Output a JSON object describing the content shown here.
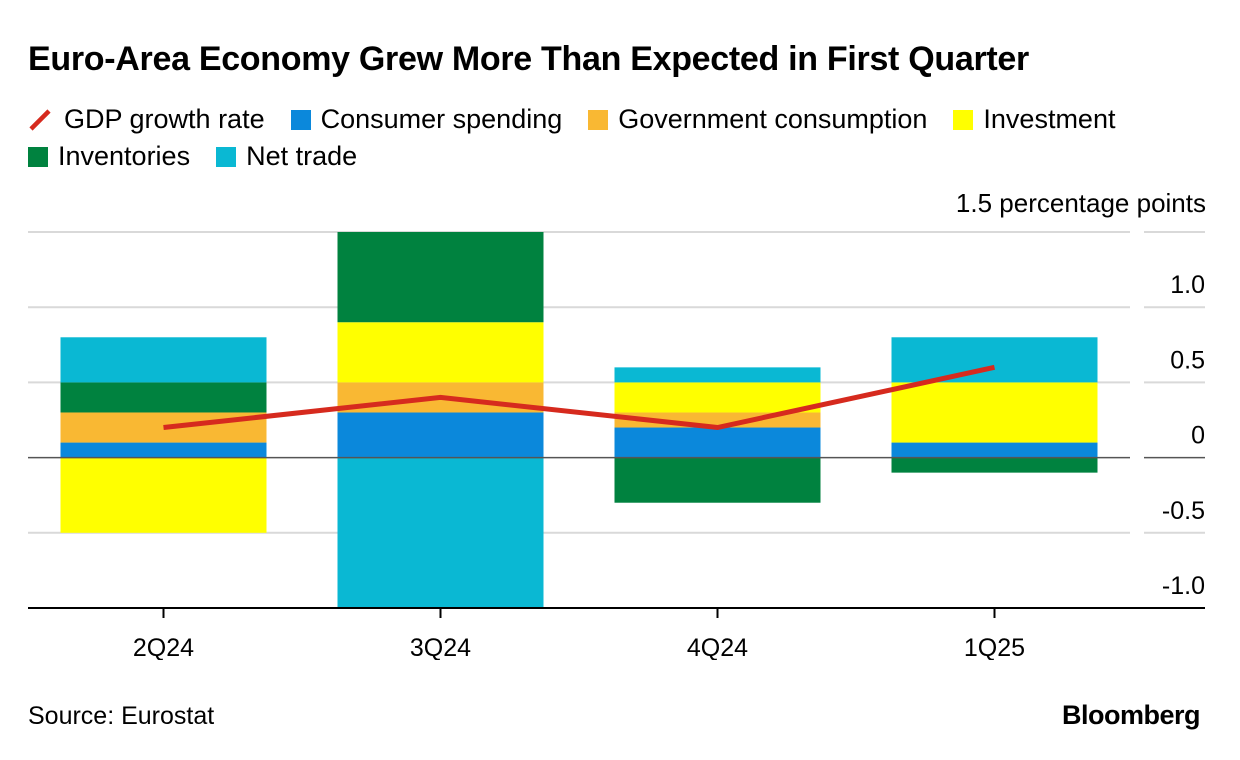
{
  "title": "Euro-Area Economy Grew More Than Expected in First Quarter",
  "unit_label": "1.5 percentage points",
  "source": "Source: Eurostat",
  "brand": "Bloomberg",
  "colors": {
    "gdp": "#d62a1e",
    "consumer": "#0b88db",
    "government": "#f9b833",
    "investment": "#ffff00",
    "inventories": "#00823f",
    "net_trade": "#0ab8d3",
    "grid": "#d9d9d9",
    "axis": "#000000"
  },
  "legend": [
    {
      "key": "gdp",
      "label": "GDP growth rate",
      "kind": "line"
    },
    {
      "key": "consumer",
      "label": "Consumer spending",
      "kind": "box"
    },
    {
      "key": "government",
      "label": "Government consumption",
      "kind": "box"
    },
    {
      "key": "investment",
      "label": "Investment",
      "kind": "box"
    },
    {
      "key": "inventories",
      "label": "Inventories",
      "kind": "box"
    },
    {
      "key": "net_trade",
      "label": "Net trade",
      "kind": "box"
    }
  ],
  "chart_data": {
    "type": "bar",
    "stacked": true,
    "categories": [
      "2Q24",
      "3Q24",
      "4Q24",
      "1Q25"
    ],
    "series": [
      {
        "name": "Consumer spending",
        "key": "consumer",
        "values": [
          0.1,
          0.3,
          0.2,
          0.1
        ]
      },
      {
        "name": "Government consumption",
        "key": "government",
        "values": [
          0.2,
          0.2,
          0.1,
          0.0
        ]
      },
      {
        "name": "Investment",
        "key": "investment",
        "values": [
          -0.5,
          0.4,
          0.2,
          0.4
        ]
      },
      {
        "name": "Inventories",
        "key": "inventories",
        "values": [
          0.2,
          0.6,
          -0.3,
          -0.1
        ]
      },
      {
        "name": "Net trade",
        "key": "net_trade",
        "values": [
          0.3,
          -1.0,
          0.1,
          0.3
        ]
      }
    ],
    "line": {
      "name": "GDP growth rate",
      "key": "gdp",
      "values": [
        0.2,
        0.4,
        0.2,
        0.6
      ]
    },
    "ylim": [
      -1.0,
      1.5
    ],
    "yticks": [
      -1.0,
      -0.5,
      0,
      0.5,
      1.0,
      1.5
    ],
    "ytick_labels": [
      "-1.0",
      "-0.5",
      "0",
      "0.5",
      "1.0",
      ""
    ],
    "grid": true
  }
}
